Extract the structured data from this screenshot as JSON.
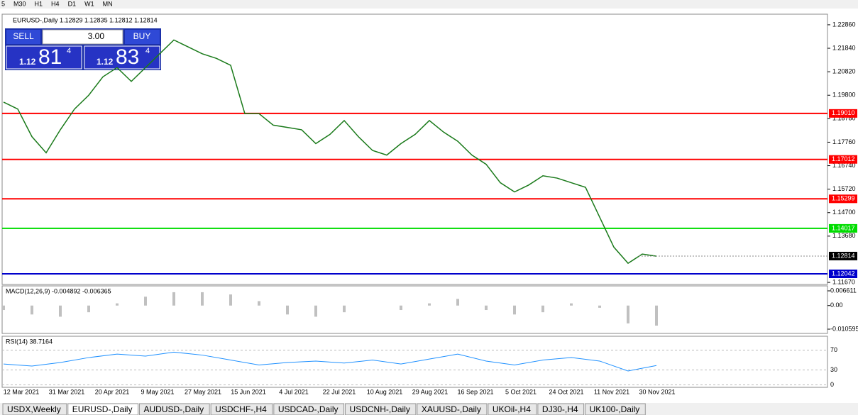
{
  "toolbar": {
    "timeframes": [
      "5",
      "M30",
      "H1",
      "H4",
      "D1",
      "W1",
      "MN"
    ]
  },
  "chart": {
    "header": "EURUSD-,Daily  1.12829 1.12835 1.12812 1.12814",
    "trade_panel": {
      "sell": "SELL",
      "buy": "BUY",
      "volume": "3.00",
      "bid": {
        "big": "1.12",
        "digits": "81",
        "pip": "4"
      },
      "ask": {
        "big": "1.12",
        "digits": "83",
        "pip": "4"
      }
    },
    "ylim": [
      1.1158,
      1.2332
    ],
    "yticks": [
      {
        "value": 1.2286,
        "label": "1.22860"
      },
      {
        "value": 1.2184,
        "label": "1.21840"
      },
      {
        "value": 1.2082,
        "label": "1.20820"
      },
      {
        "value": 1.198,
        "label": "1.19800"
      },
      {
        "value": 1.1878,
        "label": "1.18780"
      },
      {
        "value": 1.1776,
        "label": "1.17760"
      },
      {
        "value": 1.1674,
        "label": "1.16740"
      },
      {
        "value": 1.1572,
        "label": "1.15720"
      },
      {
        "value": 1.147,
        "label": "1.14700"
      },
      {
        "value": 1.1368,
        "label": "1.13680"
      },
      {
        "value": 1.1167,
        "label": "1.11670"
      }
    ],
    "price_lines": [
      {
        "value": 1.1901,
        "label": "1.19010",
        "color": "#ff0000"
      },
      {
        "value": 1.17012,
        "label": "1.17012",
        "color": "#ff0000"
      },
      {
        "value": 1.15299,
        "label": "1.15299",
        "color": "#ff0000"
      },
      {
        "value": 1.14017,
        "label": "1.14017",
        "color": "#00dd00"
      },
      {
        "value": 1.12042,
        "label": "1.12042",
        "color": "#0000cc"
      }
    ],
    "current": {
      "value": 1.12814,
      "label": "1.12814"
    },
    "closes": [
      1.195,
      1.192,
      1.18,
      1.173,
      1.183,
      1.192,
      1.198,
      1.206,
      1.21,
      1.204,
      1.21,
      1.216,
      1.222,
      1.219,
      1.216,
      1.214,
      1.211,
      1.19,
      1.19,
      1.185,
      1.184,
      1.183,
      1.177,
      1.181,
      1.187,
      1.18,
      1.174,
      1.172,
      1.177,
      1.181,
      1.187,
      1.182,
      1.178,
      1.172,
      1.168,
      1.16,
      1.156,
      1.159,
      1.163,
      1.162,
      1.16,
      1.158,
      1.145,
      1.132,
      1.125,
      1.129,
      1.1281
    ],
    "dates": [
      "12 Mar 2021",
      "31 Mar 2021",
      "20 Apr 2021",
      "9 May 2021",
      "27 May 2021",
      "15 Jun 2021",
      "4 Jul 2021",
      "22 Jul 2021",
      "10 Aug 2021",
      "29 Aug 2021",
      "16 Sep 2021",
      "5 Oct 2021",
      "24 Oct 2021",
      "11 Nov 2021",
      "30 Nov 2021"
    ]
  },
  "macd": {
    "label": "MACD(12,26,9) -0.004892 -0.006365",
    "ylim": [
      -0.01251,
      0.00884
    ],
    "yticks": [
      0.006611,
      {
        "value": 0,
        "label": "0.00"
      },
      -0.010595
    ],
    "values": [
      -0.002,
      -0.004,
      -0.005,
      -0.003,
      0.001,
      0.004,
      0.006,
      0.006,
      0.005,
      0.002,
      -0.004,
      -0.005,
      -0.003,
      0,
      -0.002,
      0.001,
      0.003,
      -0.002,
      -0.004,
      -0.003,
      0.001,
      -0.001,
      -0.008,
      -0.009
    ]
  },
  "rsi": {
    "label": "RSI(14) 38.7164",
    "ylim": [
      -5,
      98
    ],
    "yticks": [
      70,
      30,
      0
    ],
    "values": [
      42,
      38,
      45,
      55,
      62,
      58,
      66,
      60,
      50,
      40,
      45,
      48,
      44,
      50,
      42,
      52,
      62,
      48,
      40,
      50,
      55,
      48,
      28,
      39
    ]
  },
  "tabs": [
    "USDX,Weekly",
    "EURUSD-,Daily",
    "AUDUSD-,Daily",
    "USDCHF-,H4",
    "USDCAD-,Daily",
    "USDCNH-,Daily",
    "XAUUSD-,Daily",
    "UKOil-,H4",
    "DJ30-,H4",
    "UK100-,Daily"
  ]
}
